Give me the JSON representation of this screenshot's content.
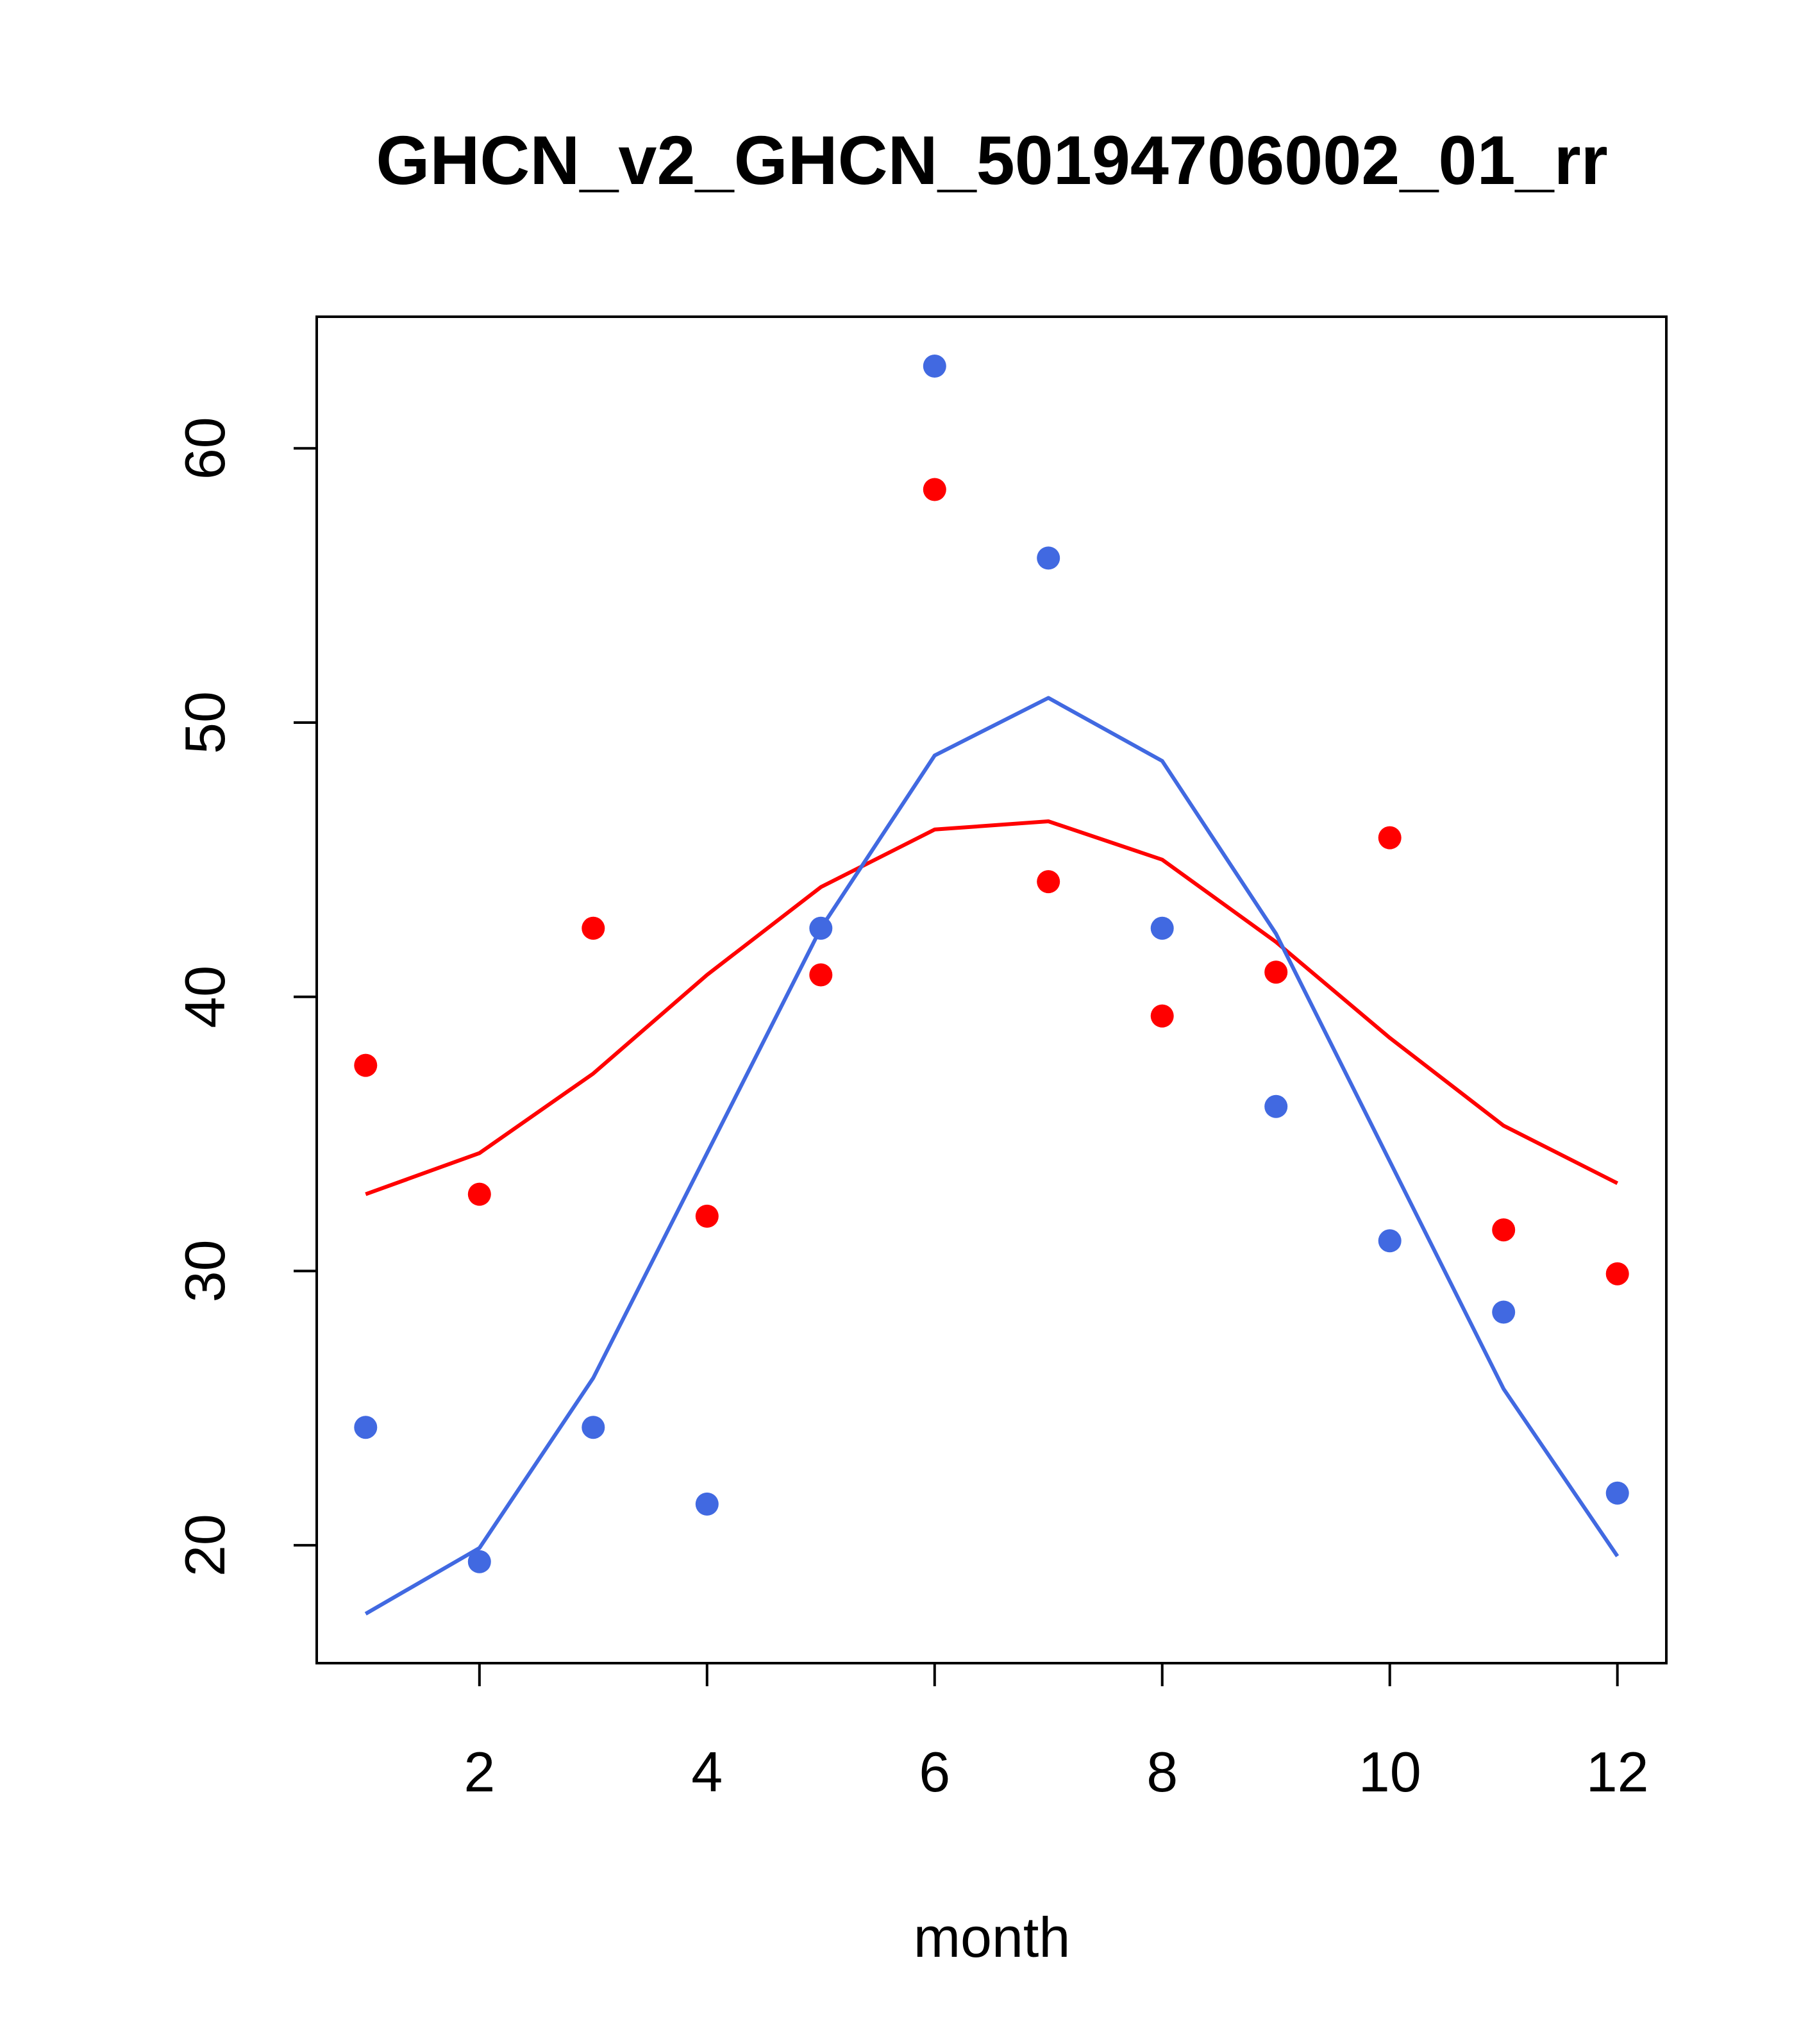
{
  "chart_data": {
    "type": "scatter",
    "title": "GHCN_v2_GHCN_50194706002_01_rr",
    "xlabel": "month",
    "ylabel": "",
    "xlim": [
      0.57,
      12.43
    ],
    "ylim": [
      15.7,
      64.8
    ],
    "x_ticks": [
      2,
      4,
      6,
      8,
      10,
      12
    ],
    "y_ticks": [
      20,
      30,
      40,
      50,
      60
    ],
    "grid": false,
    "legend": "none",
    "series": [
      {
        "kind": "points",
        "color": "#FF0000",
        "x": [
          1,
          2,
          3,
          4,
          5,
          6,
          7,
          8,
          9,
          10,
          11,
          12
        ],
        "y": [
          37.5,
          32.8,
          42.5,
          32.0,
          40.8,
          58.5,
          44.2,
          39.3,
          40.9,
          45.8,
          31.5,
          29.9
        ]
      },
      {
        "kind": "points",
        "color": "#4169E1",
        "x": [
          1,
          2,
          3,
          4,
          5,
          6,
          7,
          8,
          9,
          10,
          11,
          12
        ],
        "y": [
          24.3,
          19.4,
          24.3,
          21.5,
          42.5,
          63.0,
          56.0,
          42.5,
          36.0,
          31.1,
          28.5,
          21.9
        ]
      },
      {
        "kind": "line",
        "color": "#FF0000",
        "x": [
          1,
          2,
          3,
          4,
          5,
          6,
          7,
          8,
          9,
          10,
          11,
          12
        ],
        "y": [
          32.8,
          34.3,
          37.2,
          40.8,
          44.0,
          46.1,
          46.4,
          45.0,
          42.0,
          38.5,
          35.3,
          33.2
        ]
      },
      {
        "kind": "line",
        "color": "#4169E1",
        "x": [
          1,
          2,
          3,
          4,
          5,
          6,
          7,
          8,
          9,
          10,
          11,
          12
        ],
        "y": [
          17.5,
          19.9,
          26.1,
          34.3,
          42.5,
          48.8,
          50.9,
          48.6,
          42.3,
          34.0,
          25.7,
          19.6
        ]
      }
    ]
  }
}
